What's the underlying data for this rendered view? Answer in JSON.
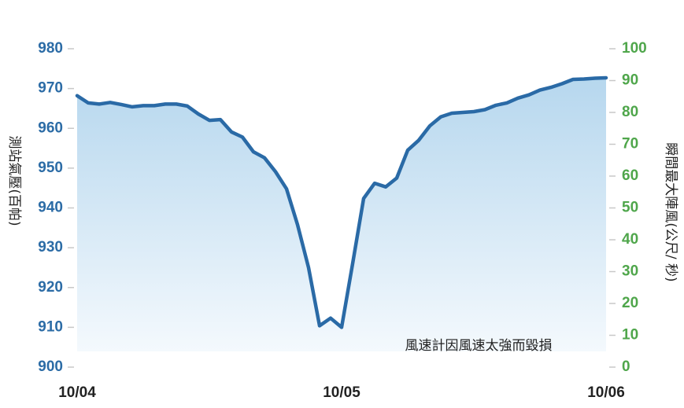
{
  "chart_data": {
    "type": "area",
    "x": [
      "10/04 00:00",
      "10/04 01:00",
      "10/04 02:00",
      "10/04 03:00",
      "10/04 04:00",
      "10/04 05:00",
      "10/04 06:00",
      "10/04 07:00",
      "10/04 08:00",
      "10/04 09:00",
      "10/04 10:00",
      "10/04 11:00",
      "10/04 12:00",
      "10/04 13:00",
      "10/04 14:00",
      "10/04 15:00",
      "10/04 16:00",
      "10/04 17:00",
      "10/04 18:00",
      "10/04 19:00",
      "10/04 20:00",
      "10/04 21:00",
      "10/04 22:00",
      "10/04 23:00",
      "10/05 00:00",
      "10/05 01:00",
      "10/05 02:00",
      "10/05 03:00",
      "10/05 04:00",
      "10/05 05:00",
      "10/05 06:00",
      "10/05 07:00",
      "10/05 08:00",
      "10/05 09:00",
      "10/05 10:00",
      "10/05 11:00",
      "10/05 12:00",
      "10/05 13:00",
      "10/05 14:00",
      "10/05 15:00",
      "10/05 16:00",
      "10/05 17:00",
      "10/05 18:00",
      "10/05 19:00",
      "10/05 20:00",
      "10/05 21:00",
      "10/05 22:00",
      "10/05 23:00",
      "10/06 00:00"
    ],
    "series": [
      {
        "axis": "left",
        "values": [
          968.2,
          966.4,
          966.1,
          966.5,
          966.0,
          965.4,
          965.7,
          965.7,
          966.1,
          966.1,
          965.6,
          963.6,
          962.0,
          962.2,
          959.1,
          957.8,
          954.1,
          952.6,
          949.1,
          944.8,
          935.8,
          925.0,
          910.4,
          912.3,
          910.0,
          926.0,
          942.4,
          946.2,
          945.3,
          947.5,
          954.5,
          957.0,
          960.6,
          962.9,
          963.8,
          964.0,
          964.2,
          964.7,
          965.8,
          966.4,
          967.6,
          968.4,
          969.6,
          970.3,
          971.2,
          972.3,
          972.4,
          972.6,
          972.7
        ]
      }
    ],
    "x_ticks": [
      "10/04",
      "10/05",
      "10/06"
    ],
    "left_axis": {
      "label": "測站氣壓(百帕)",
      "ylim": [
        900,
        980
      ],
      "ticks": [
        "900",
        "910",
        "920",
        "930",
        "940",
        "950",
        "960",
        "970",
        "980"
      ]
    },
    "right_axis": {
      "label": "瞬間最大陣風(公尺/ 秒)",
      "ylim": [
        0,
        100
      ],
      "ticks": [
        "0",
        "10",
        "20",
        "30",
        "40",
        "50",
        "60",
        "70",
        "80",
        "90",
        "100"
      ]
    },
    "annotation": "風速計因風速太強而毀損",
    "colors": {
      "line": "#2a6aa6",
      "fill_top": "#b6d7ee",
      "fill_bottom": "#f4f9fd",
      "left_ticks": "#2c6ca6",
      "right_ticks": "#4fa64b",
      "tick_marks": "#c8c8c8"
    },
    "grid": false
  }
}
